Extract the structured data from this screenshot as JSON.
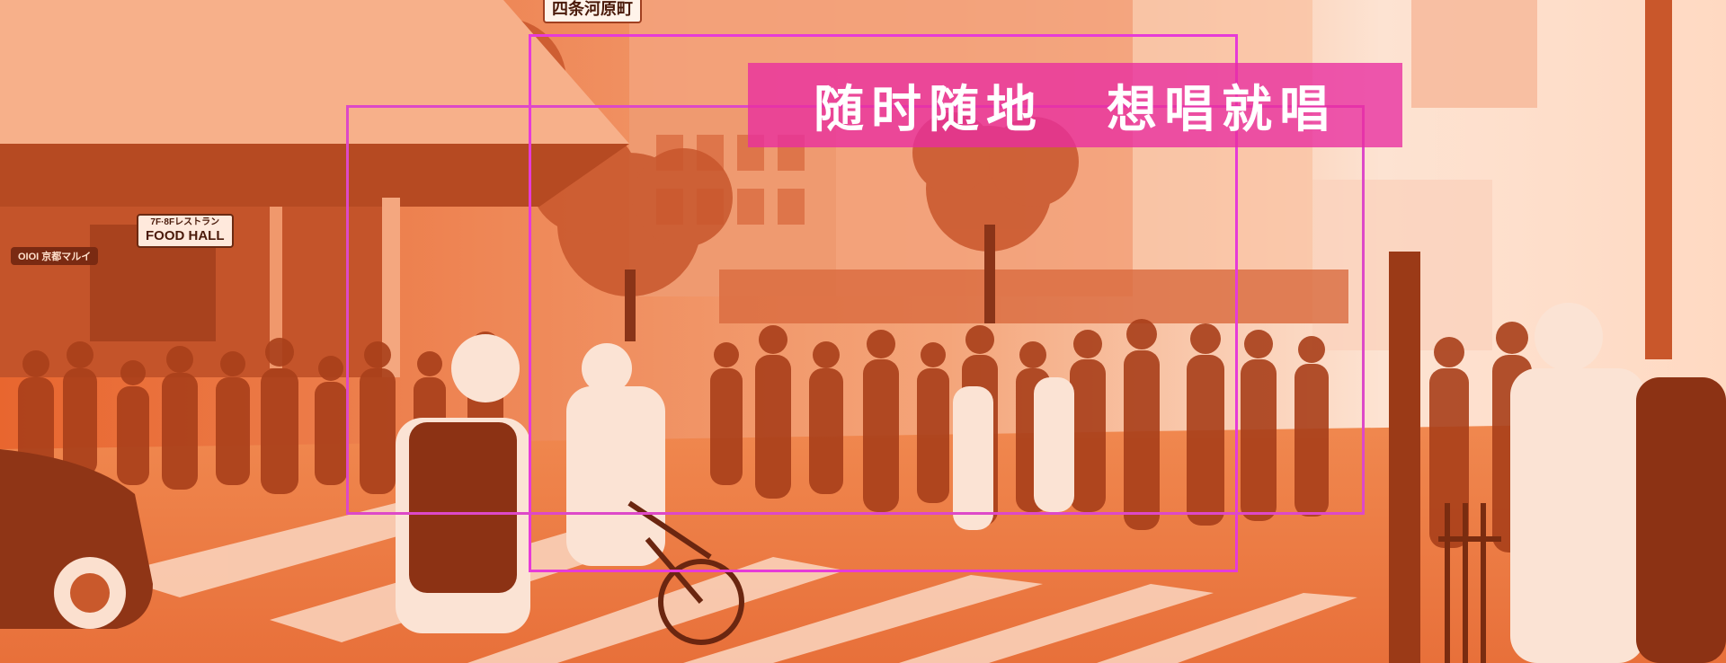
{
  "slogan": {
    "part1": "随时随地",
    "part2": "想唱就唱"
  },
  "signs": {
    "food_hall_jp": "7F·8Fレストラン",
    "food_hall": "FOOD HALL",
    "store": "OIOI 京都マルイ",
    "street_sign": "四条河原町"
  },
  "colors": {
    "overlay_base": "#f28a55",
    "frame_outer": "#e63bd8",
    "frame_inner": "#dd49c8",
    "slogan_bg": "#e82da0",
    "slogan_text": "#ffffff"
  }
}
